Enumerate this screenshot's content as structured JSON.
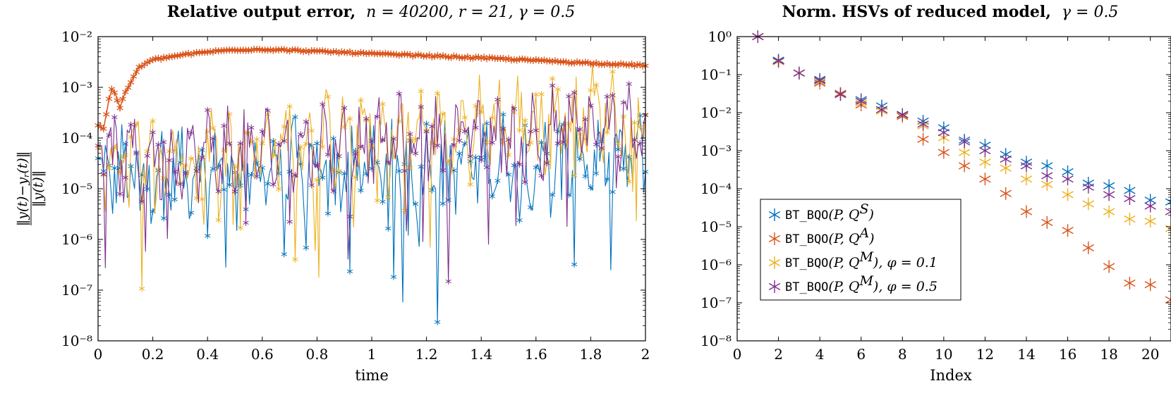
{
  "chart_data": [
    {
      "type": "line",
      "title": {
        "bold": "Relative output error,",
        "math": "n = 40200, r = 21, γ = 0.5"
      },
      "xlabel": "time",
      "ylabel": "‖y(t)−y_r(t)‖ / ‖y(t)‖",
      "xlim": [
        0,
        2
      ],
      "ylim": [
        1e-08,
        0.01
      ],
      "yscale": "log",
      "x_ticks": [
        "0",
        "0.2",
        "0.4",
        "0.6",
        "0.8",
        "1",
        "1.2",
        "1.4",
        "1.6",
        "1.8",
        "2"
      ],
      "y_ticks": [
        "10⁻⁸",
        "10⁻⁷",
        "10⁻⁶",
        "10⁻⁵",
        "10⁻⁴",
        "10⁻³",
        "10⁻²"
      ],
      "grid": false,
      "series": [
        {
          "name": "BT_BQO(P,Q^S)",
          "color": "#0072BD",
          "envelope": "oscillating between about 1e-6 and 2e-4, occasional dips to 1e-7"
        },
        {
          "name": "BT_BQO(P,Q^A)",
          "color": "#D95319",
          "points": [
            [
              0,
              0.00018
            ],
            [
              0.02,
              0.00015
            ],
            [
              0.04,
              0.0006
            ],
            [
              0.05,
              0.0009
            ],
            [
              0.06,
              0.0008
            ],
            [
              0.08,
              0.0004
            ],
            [
              0.1,
              0.0008
            ],
            [
              0.15,
              0.0025
            ],
            [
              0.2,
              0.0035
            ],
            [
              0.3,
              0.0043
            ],
            [
              0.4,
              0.005
            ],
            [
              0.5,
              0.0055
            ],
            [
              0.6,
              0.0056
            ],
            [
              0.7,
              0.0054
            ],
            [
              0.8,
              0.0051
            ],
            [
              0.9,
              0.0049
            ],
            [
              1.0,
              0.0046
            ],
            [
              1.2,
              0.0042
            ],
            [
              1.4,
              0.0038
            ],
            [
              1.6,
              0.0034
            ],
            [
              1.8,
              0.003
            ],
            [
              2.0,
              0.0027
            ]
          ]
        },
        {
          "name": "BT_BQO(P,Q^M), φ = 0.1",
          "color": "#EDB120",
          "envelope": "oscillating between about 3e-6 and 1e-3, growing with time"
        },
        {
          "name": "BT_BQO(P,Q^M), φ = 0.5",
          "color": "#7E2F8E",
          "envelope": "oscillating between about 1e-6 and 5e-4, occasional dips to 7e-8"
        }
      ]
    },
    {
      "type": "scatter",
      "title": {
        "bold": "Norm. HSVs of reduced model,",
        "math": "γ = 0.5"
      },
      "xlabel": "Index",
      "ylabel": "",
      "xlim": [
        0,
        21
      ],
      "ylim": [
        1e-08,
        1
      ],
      "yscale": "log",
      "x_ticks": [
        "0",
        "2",
        "4",
        "6",
        "8",
        "10",
        "12",
        "14",
        "16",
        "18",
        "20"
      ],
      "y_ticks": [
        "10⁻⁸",
        "10⁻⁷",
        "10⁻⁶",
        "10⁻⁵",
        "10⁻⁴",
        "10⁻³",
        "10⁻²",
        "10⁻¹",
        "10⁰"
      ],
      "grid": false,
      "legend_position": "bottom-left",
      "x": [
        1,
        2,
        3,
        4,
        5,
        6,
        7,
        8,
        9,
        10,
        11,
        12,
        13,
        14,
        15,
        16,
        17,
        18,
        19,
        20,
        21
      ],
      "series": [
        {
          "name": "BT_BQO(P,Q^S)",
          "color": "#0072BD",
          "values": [
            1,
            0.24,
            0.11,
            0.075,
            0.032,
            0.022,
            0.015,
            0.009,
            0.006,
            0.004,
            0.0019,
            0.0014,
            0.0008,
            0.0005,
            0.0004,
            0.00028,
            0.00014,
            0.00012,
            9e-05,
            5e-05,
            4.5e-05
          ]
        },
        {
          "name": "BT_BQO(P,Q^A)",
          "color": "#D95319",
          "values": [
            1,
            0.22,
            0.11,
            0.06,
            0.032,
            0.016,
            0.012,
            0.008,
            0.002,
            0.0009,
            0.0004,
            0.00018,
            7.5e-05,
            2.5e-05,
            1.3e-05,
            8e-06,
            2.8e-06,
            9e-07,
            3.3e-07,
            3e-07,
            1.2e-07
          ]
        },
        {
          "name": "BT_BQO(P,Q^M), φ = 0.1",
          "color": "#EDB120",
          "values": [
            1,
            0.22,
            0.11,
            0.065,
            0.03,
            0.018,
            0.011,
            0.0085,
            0.0045,
            0.0022,
            0.0009,
            0.0005,
            0.00035,
            0.00018,
            0.00013,
            7e-05,
            4e-05,
            2.5e-05,
            1.6e-05,
            1.4e-05,
            9e-06
          ]
        },
        {
          "name": "BT_BQO(P,Q^M), φ = 0.5",
          "color": "#7E2F8E",
          "values": [
            1,
            0.23,
            0.11,
            0.07,
            0.03,
            0.02,
            0.012,
            0.0088,
            0.005,
            0.003,
            0.0017,
            0.001,
            0.0006,
            0.0004,
            0.00022,
            0.00018,
            0.00011,
            7e-05,
            5.5e-05,
            3.5e-05,
            2.5e-05
          ]
        }
      ]
    }
  ]
}
